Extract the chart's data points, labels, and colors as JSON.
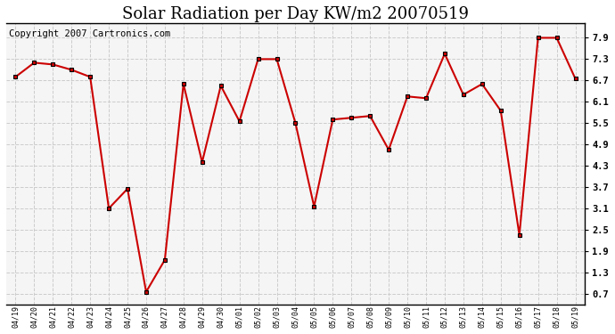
{
  "title": "Solar Radiation per Day KW/m2 20070519",
  "copyright": "Copyright 2007 Cartronics.com",
  "labels": [
    "04/19",
    "04/20",
    "04/21",
    "04/22",
    "04/23",
    "04/24",
    "04/25",
    "04/26",
    "04/27",
    "04/28",
    "04/29",
    "04/30",
    "05/01",
    "05/02",
    "05/03",
    "05/04",
    "05/05",
    "05/06",
    "05/07",
    "05/08",
    "05/09",
    "05/10",
    "05/11",
    "05/12",
    "05/13",
    "05/14",
    "05/15",
    "05/16",
    "05/17",
    "05/18",
    "05/19"
  ],
  "values": [
    6.8,
    7.2,
    7.15,
    7.0,
    6.8,
    3.1,
    3.65,
    0.75,
    1.65,
    6.6,
    4.4,
    6.55,
    5.55,
    7.3,
    7.3,
    5.5,
    3.15,
    5.6,
    5.65,
    5.7,
    4.75,
    6.25,
    6.2,
    7.45,
    6.3,
    6.6,
    5.85,
    2.35,
    7.9,
    7.9,
    6.75
  ],
  "line_color": "#cc0000",
  "marker_color": "#000000",
  "marker_face": "#cc0000",
  "bg_color": "#ffffff",
  "plot_bg_color": "#f5f5f5",
  "grid_color": "#cccccc",
  "yticks": [
    0.7,
    1.3,
    1.9,
    2.5,
    3.1,
    3.7,
    4.3,
    4.9,
    5.5,
    6.1,
    6.7,
    7.3,
    7.9
  ],
  "ylim": [
    0.4,
    8.3
  ],
  "title_fontsize": 13,
  "copyright_fontsize": 7.5
}
